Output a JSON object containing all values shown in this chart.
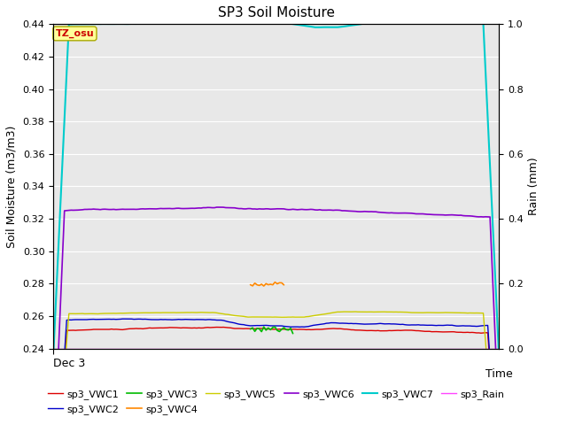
{
  "title": "SP3 Soil Moisture",
  "xlabel": "Time",
  "ylabel_left": "Soil Moisture (m3/m3)",
  "ylabel_right": "Rain (mm)",
  "ylim_left": [
    0.24,
    0.44
  ],
  "ylim_right": [
    0.0,
    1.0
  ],
  "xlim": [
    0,
    100
  ],
  "tz_label": "TZ_osu",
  "tz_label_color": "#cc0000",
  "tz_box_facecolor": "#ffff99",
  "tz_box_edgecolor": "#aaaa00",
  "background_color": "#e8e8e8",
  "fig_background": "#ffffff",
  "grid_color": "#ffffff",
  "colors": {
    "sp3_VWC1": "#dd0000",
    "sp3_VWC2": "#0000cc",
    "sp3_VWC3": "#00bb00",
    "sp3_VWC4": "#ff8800",
    "sp3_VWC5": "#cccc00",
    "sp3_VWC6": "#8800cc",
    "sp3_VWC7": "#00cccc",
    "sp3_Rain": "#ff44ff"
  },
  "linewidths": {
    "sp3_VWC1": 1.0,
    "sp3_VWC2": 1.0,
    "sp3_VWC3": 1.2,
    "sp3_VWC4": 1.2,
    "sp3_VWC5": 1.0,
    "sp3_VWC6": 1.2,
    "sp3_VWC7": 1.5,
    "sp3_Rain": 1.0
  },
  "legend_order": [
    "sp3_VWC1",
    "sp3_VWC2",
    "sp3_VWC3",
    "sp3_VWC4",
    "sp3_VWC5",
    "sp3_VWC6",
    "sp3_VWC7",
    "sp3_Rain"
  ],
  "xtick_label": "Dec 3",
  "yticks_left": [
    0.24,
    0.26,
    0.28,
    0.3,
    0.32,
    0.34,
    0.36,
    0.38,
    0.4,
    0.42,
    0.44
  ],
  "yticks_right": [
    0.0,
    0.2,
    0.4,
    0.6,
    0.8,
    1.0
  ],
  "n_points": 200
}
